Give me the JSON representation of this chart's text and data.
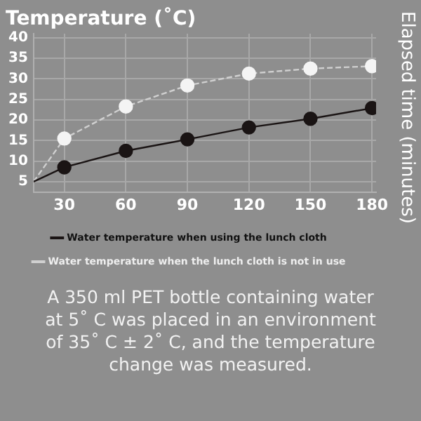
{
  "chart_data": {
    "type": "line",
    "ylabel": "Temperature (˚C)",
    "x": [
      15,
      30,
      60,
      90,
      120,
      150,
      180
    ],
    "series": [
      {
        "name": "Water temperature when using the lunch cloth",
        "color": "#1a1414",
        "values": [
          5,
          8.5,
          12.5,
          15.3,
          18.2,
          20.3,
          22.9
        ],
        "line_style": "solid"
      },
      {
        "name": "Water temperature when the lunch cloth is not in use",
        "color": "#f4f4f4",
        "values": [
          5,
          15.5,
          23.3,
          28.4,
          31.3,
          32.5,
          33.1
        ],
        "line_style": "dashed"
      }
    ],
    "xlim": [
      15,
      182
    ],
    "xticks": [
      30,
      60,
      90,
      120,
      150,
      180
    ],
    "ylim": [
      2.5,
      41
    ],
    "yticks": [
      5,
      10,
      15,
      20,
      25,
      30,
      35,
      40
    ],
    "grid": true,
    "legend": "bottom",
    "marker": "circle",
    "annotations": [
      "Elapsed time (minutes)",
      "A 350 ml PET bottle containing water at 5˚ C was placed in an environment of 35˚ C ± 2˚ C, and the temperature change was measured."
    ]
  }
}
